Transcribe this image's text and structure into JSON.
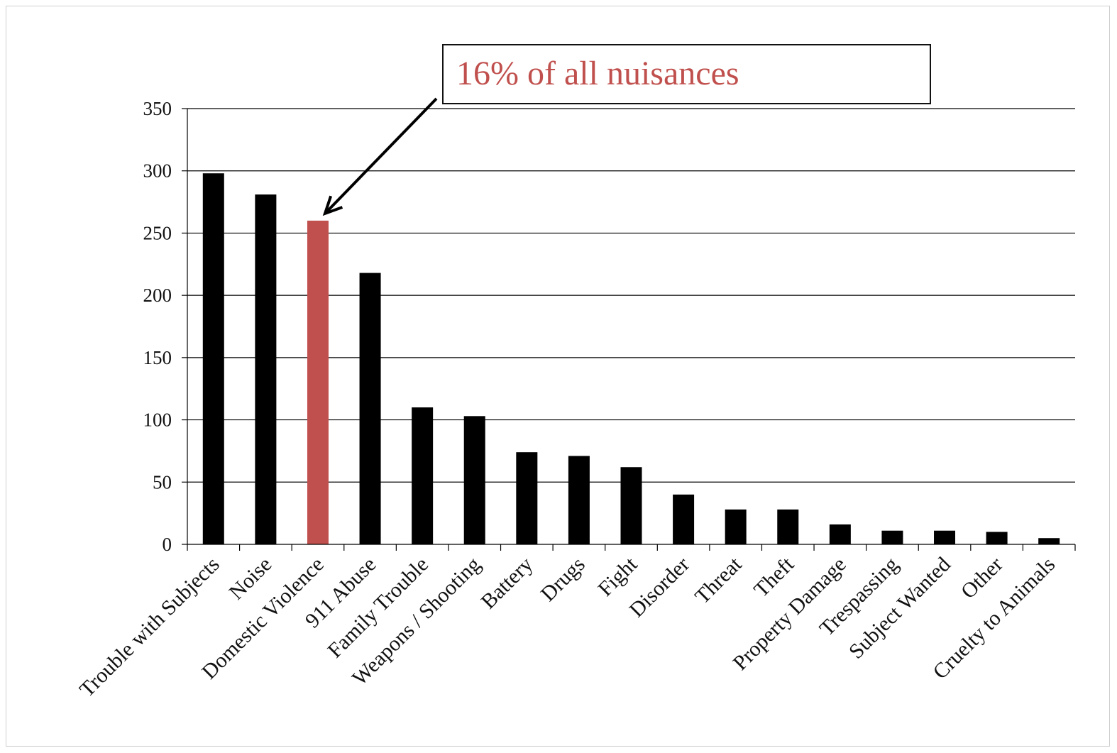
{
  "chart_data": {
    "type": "bar",
    "categories": [
      "Trouble with Subjects",
      "Noise",
      "Domestic Violence",
      "911 Abuse",
      "Family Trouble",
      "Weapons / Shooting",
      "Battery",
      "Drugs",
      "Fight",
      "Disorder",
      "Threat",
      "Theft",
      "Property Damage",
      "Trespassing",
      "Subject Wanted",
      "Other",
      "Cruelty to Animals"
    ],
    "values": [
      298,
      281,
      260,
      218,
      110,
      103,
      74,
      71,
      62,
      40,
      28,
      28,
      16,
      11,
      11,
      10,
      5
    ],
    "highlight_index": 2,
    "ylim": [
      0,
      350
    ],
    "yticks": [
      0,
      50,
      100,
      150,
      200,
      250,
      300,
      350
    ],
    "grid": true,
    "colors": {
      "bar": "#000000",
      "highlight": "#c0504d",
      "gridline": "#000000"
    },
    "annotation": {
      "text": "16% of all nuisances",
      "color": "#c0504d",
      "points_to": "Domestic Violence"
    }
  }
}
